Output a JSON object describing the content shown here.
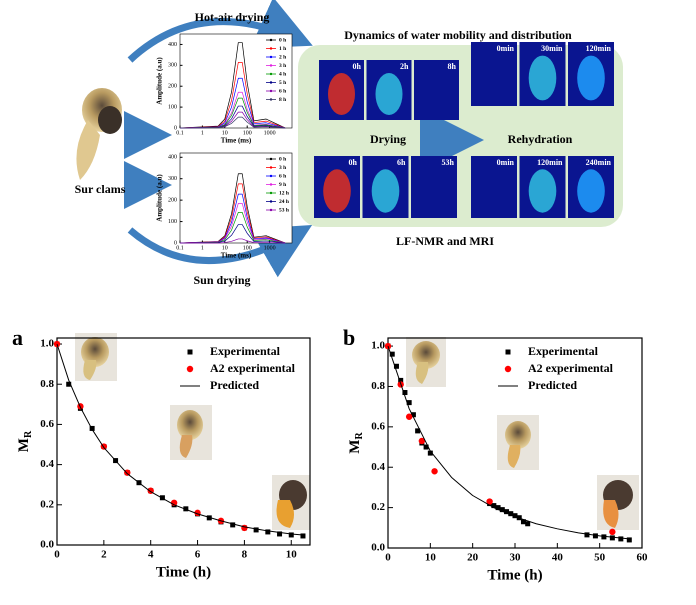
{
  "figure": {
    "hot_air_label": "Hot-air drying",
    "sun_label": "Sun drying",
    "sample_label": "Sur clams",
    "panel_title": "Dynamics of water mobility and distribution",
    "drying_label": "Drying",
    "rehydration_label": "Rehydration",
    "method_label": "LF-NMR and MRI",
    "mri_hot_air_drying_times": [
      "0h",
      "2h",
      "8h"
    ],
    "mri_hot_air_rehydration_times": [
      "0min",
      "30min",
      "120min"
    ],
    "mri_sun_drying_times": [
      "0h",
      "6h",
      "53h"
    ],
    "mri_sun_rehydration_times": [
      "0min",
      "120min",
      "240min"
    ]
  },
  "chart_data": [
    {
      "type": "line",
      "x_label": "Time (ms)",
      "y_label": "Amplitude (a.u)",
      "log_x": true,
      "legend": "upper right",
      "x": [
        0.1,
        5,
        10,
        20,
        40,
        60,
        100,
        200,
        700,
        5000
      ],
      "xlim": [
        0.1,
        10000
      ],
      "xticks": [
        0.1,
        1,
        10,
        100,
        1000
      ],
      "ylim": [
        0,
        450
      ],
      "yticks": [
        0,
        100,
        200,
        300,
        400
      ],
      "series": [
        {
          "name": "0 h",
          "color": "#000000",
          "values": [
            0,
            9,
            43,
            172,
            409,
            409,
            215,
            34,
            43,
            0
          ]
        },
        {
          "name": "1 h",
          "color": "#ff0000",
          "values": [
            0,
            7,
            33,
            132,
            314,
            314,
            165,
            26,
            33,
            0
          ]
        },
        {
          "name": "2 h",
          "color": "#0000ff",
          "values": [
            0,
            5,
            25,
            100,
            238,
            238,
            125,
            20,
            25,
            0
          ]
        },
        {
          "name": "3 h",
          "color": "#e020e0",
          "values": [
            0,
            4,
            18,
            72,
            171,
            171,
            90,
            14,
            18,
            0
          ]
        },
        {
          "name": "4 h",
          "color": "#009900",
          "values": [
            0,
            3,
            15,
            60,
            143,
            143,
            75,
            12,
            15,
            0
          ]
        },
        {
          "name": "5 h",
          "color": "#000088",
          "values": [
            0,
            2,
            11,
            44,
            105,
            105,
            55,
            9,
            11,
            0
          ]
        },
        {
          "name": "6 h",
          "color": "#8800aa",
          "values": [
            0,
            2,
            8,
            32,
            76,
            76,
            40,
            6,
            8,
            0
          ]
        },
        {
          "name": "8 h",
          "color": "#333366",
          "values": [
            0,
            1,
            6,
            22,
            52,
            52,
            28,
            4,
            6,
            0
          ]
        }
      ]
    },
    {
      "type": "line",
      "x_label": "Time (ms)",
      "y_label": "Amplitude (a.u)",
      "log_x": true,
      "legend": "upper right",
      "x": [
        0.1,
        5,
        10,
        20,
        40,
        60,
        100,
        200,
        700,
        5000
      ],
      "xlim": [
        0.1,
        10000
      ],
      "xticks": [
        0.1,
        1,
        10,
        100,
        1000
      ],
      "ylim": [
        0,
        420
      ],
      "yticks": [
        0,
        100,
        200,
        300,
        400
      ],
      "series": [
        {
          "name": "0 h",
          "color": "#000000",
          "values": [
            0,
            7,
            34,
            136,
            323,
            323,
            170,
            27,
            34,
            0
          ]
        },
        {
          "name": "3 h",
          "color": "#ff0000",
          "values": [
            0,
            6,
            29,
            116,
            276,
            276,
            145,
            23,
            29,
            0
          ]
        },
        {
          "name": "6 h",
          "color": "#0000ff",
          "values": [
            0,
            5,
            24,
            96,
            228,
            228,
            120,
            19,
            24,
            0
          ]
        },
        {
          "name": "9 h",
          "color": "#e020e0",
          "values": [
            0,
            4,
            20,
            78,
            185,
            185,
            98,
            16,
            20,
            0
          ]
        },
        {
          "name": "12 h",
          "color": "#009900",
          "values": [
            0,
            3,
            15,
            60,
            143,
            143,
            75,
            12,
            15,
            0
          ]
        },
        {
          "name": "24 h",
          "color": "#000088",
          "values": [
            0,
            2,
            9,
            36,
            86,
            86,
            45,
            7,
            9,
            0
          ]
        },
        {
          "name": "53 h",
          "color": "#8800aa",
          "values": [
            0,
            0,
            2,
            8,
            19,
            19,
            10,
            2,
            2,
            0
          ]
        }
      ]
    },
    {
      "type": "scatter",
      "panel_label": "a",
      "x_label": "Time (h)",
      "y_label": "M",
      "y_label_subscript": "R",
      "legend": "upper right",
      "xlim": [
        0,
        10.8
      ],
      "xticks": [
        0,
        2,
        4,
        6,
        8,
        10
      ],
      "ylim": [
        0,
        1.03
      ],
      "yticks": [
        {
          "value": 0,
          "label": "0.0"
        },
        0.2,
        0.4,
        0.6,
        0.8,
        {
          "value": 1,
          "label": "1.0"
        }
      ],
      "series": [
        {
          "name": "Experimental",
          "color": "#000000",
          "mode": "markers",
          "marker": "square",
          "x": [
            0,
            0.5,
            1,
            1.5,
            2,
            2.5,
            3,
            3.5,
            4,
            4.5,
            5,
            5.5,
            6,
            6.5,
            7,
            7.5,
            8,
            8.5,
            9,
            9.5,
            10,
            10.5
          ],
          "values": [
            1.0,
            0.8,
            0.68,
            0.58,
            0.49,
            0.42,
            0.36,
            0.31,
            0.27,
            0.235,
            0.2,
            0.18,
            0.155,
            0.135,
            0.115,
            0.1,
            0.085,
            0.075,
            0.065,
            0.055,
            0.05,
            0.045
          ]
        },
        {
          "name": "A2 experimental",
          "color": "#ff0000",
          "mode": "markers",
          "marker": "circle",
          "x": [
            0,
            1,
            2,
            3,
            4,
            5,
            6,
            7,
            8
          ],
          "values": [
            1.0,
            0.69,
            0.49,
            0.36,
            0.27,
            0.21,
            0.16,
            0.12,
            0.085
          ]
        },
        {
          "name": "Predicted",
          "color": "#000000",
          "mode": "line",
          "x": [
            0,
            0.5,
            1,
            1.5,
            2,
            3,
            4,
            5,
            6,
            7,
            8,
            9,
            10,
            10.5
          ],
          "values": [
            1.0,
            0.82,
            0.685,
            0.575,
            0.485,
            0.355,
            0.265,
            0.2,
            0.155,
            0.12,
            0.09,
            0.07,
            0.055,
            0.05
          ]
        }
      ]
    },
    {
      "type": "scatter",
      "panel_label": "b",
      "x_label": "Time (h)",
      "y_label": "M",
      "y_label_subscript": "R",
      "legend": "upper right",
      "xlim": [
        0,
        60
      ],
      "xticks": [
        0,
        10,
        20,
        30,
        40,
        50,
        60
      ],
      "ylim": [
        0,
        1.04
      ],
      "yticks": [
        {
          "value": 0,
          "label": "0.0"
        },
        0.2,
        0.4,
        0.6,
        0.8,
        {
          "value": 1,
          "label": "1.0"
        }
      ],
      "series": [
        {
          "name": "Experimental",
          "color": "#000000",
          "mode": "markers",
          "marker": "square",
          "x": [
            0,
            1,
            2,
            3,
            4,
            5,
            6,
            7,
            8,
            9,
            10,
            24,
            25,
            26,
            27,
            28,
            29,
            30,
            31,
            32,
            33,
            47,
            49,
            51,
            53,
            55,
            57
          ],
          "values": [
            1.0,
            0.96,
            0.9,
            0.83,
            0.77,
            0.72,
            0.66,
            0.58,
            0.52,
            0.5,
            0.47,
            0.22,
            0.21,
            0.2,
            0.19,
            0.18,
            0.17,
            0.16,
            0.15,
            0.13,
            0.12,
            0.065,
            0.06,
            0.055,
            0.05,
            0.045,
            0.04
          ]
        },
        {
          "name": "A2 experimental",
          "color": "#ff0000",
          "mode": "markers",
          "marker": "circle",
          "x": [
            0,
            3,
            5,
            8,
            11,
            24,
            53
          ],
          "values": [
            1.0,
            0.81,
            0.65,
            0.53,
            0.38,
            0.23,
            0.08
          ]
        },
        {
          "name": "Predicted",
          "color": "#000000",
          "mode": "line",
          "x": [
            0,
            5,
            10,
            15,
            20,
            25,
            30,
            35,
            40,
            45,
            50,
            57
          ],
          "values": [
            1.0,
            0.69,
            0.48,
            0.35,
            0.26,
            0.2,
            0.155,
            0.12,
            0.095,
            0.075,
            0.06,
            0.045
          ]
        }
      ]
    }
  ]
}
